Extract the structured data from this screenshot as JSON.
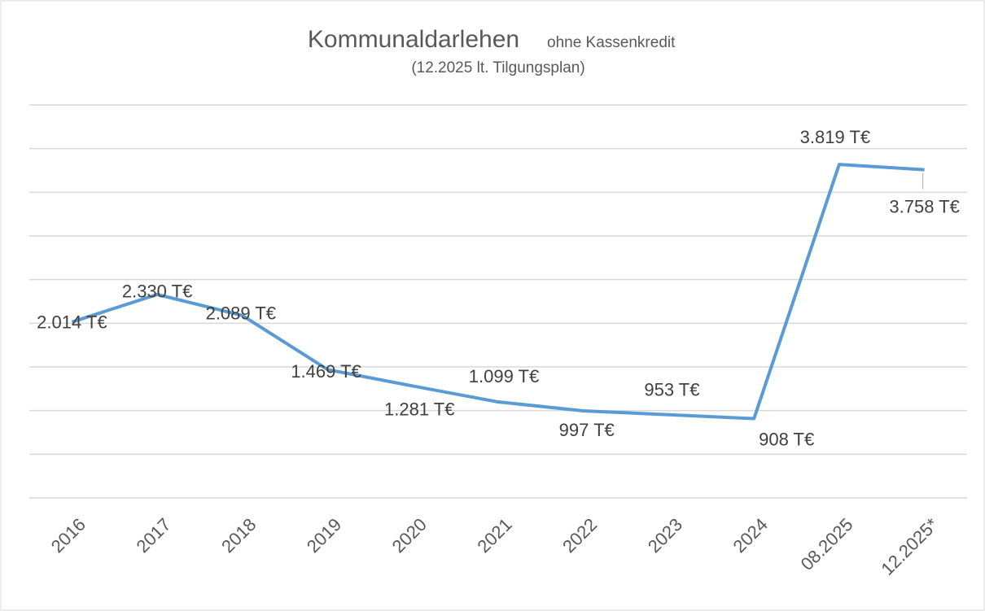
{
  "chart_data": {
    "type": "line",
    "title": "Kommunaldarlehen",
    "title_note": "ohne Kassenkredit",
    "subtitle": "(12.2025 lt.  Tilgungsplan)",
    "categories": [
      "2016",
      "2017",
      "2018",
      "2019",
      "2020",
      "2021",
      "2022",
      "2023",
      "2024",
      "08.2025",
      "12.2025*"
    ],
    "series": [
      {
        "name": "Kommunaldarlehen",
        "color": "#5b9bd5",
        "values": [
          2014,
          2330,
          2089,
          1469,
          1281,
          1099,
          997,
          953,
          908,
          3819,
          3758
        ],
        "value_labels": [
          "2.014 T€",
          "2.330 T€",
          "2.089 T€",
          "1.469 T€",
          "1.281 T€",
          "1.099 T€",
          "997 T€",
          "953 T€",
          "908 T€",
          "3.819 T€",
          "3.758 T€"
        ]
      }
    ],
    "ylim": [
      0,
      4500
    ],
    "yticks": [
      0,
      500,
      1000,
      1500,
      2000,
      2500,
      3000,
      3500,
      4000,
      4500
    ],
    "grid": true
  }
}
